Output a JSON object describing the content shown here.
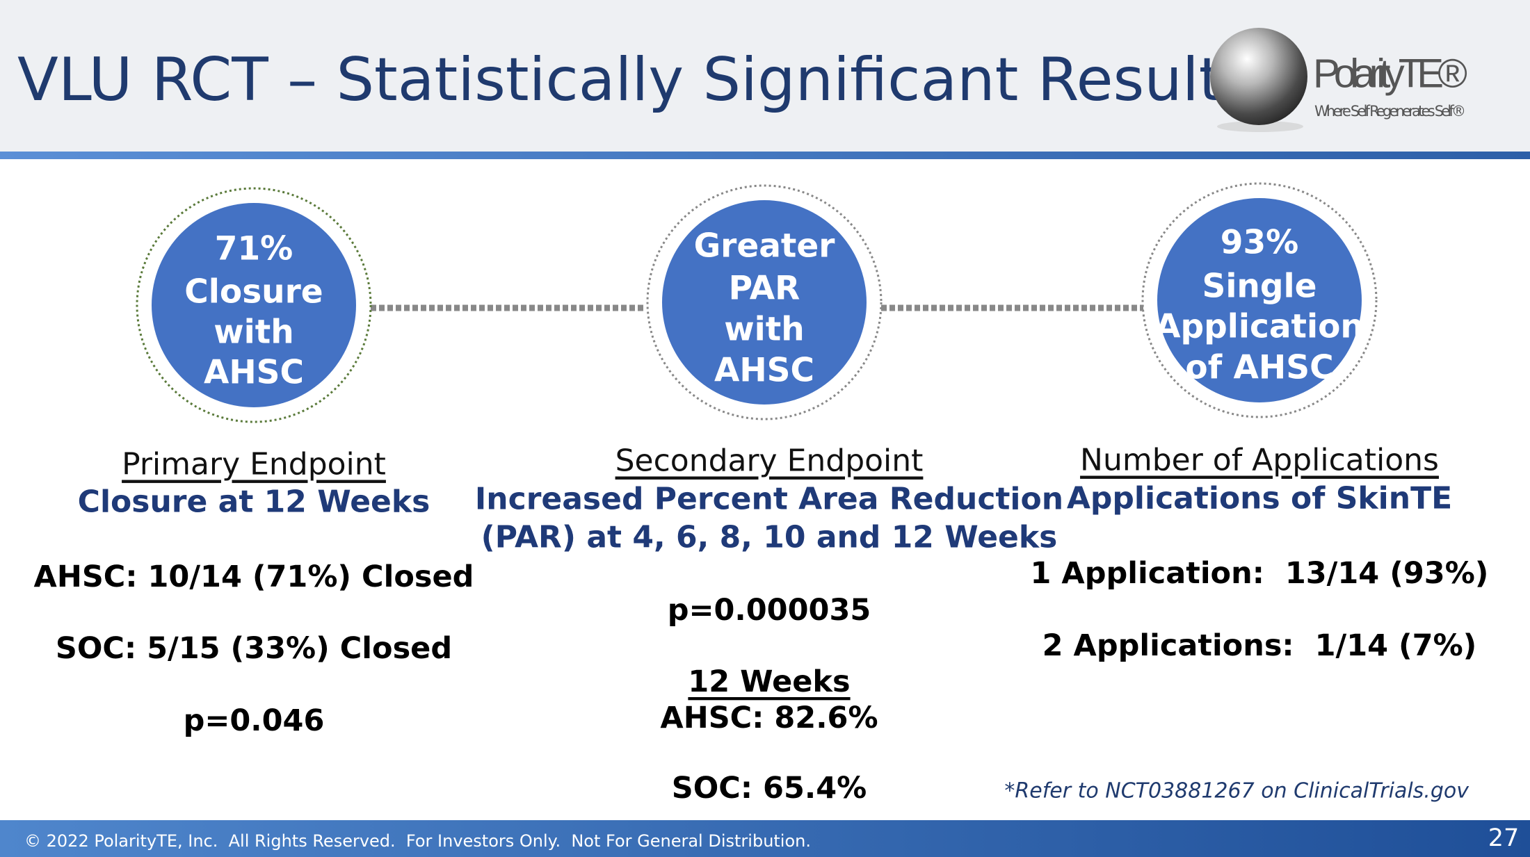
{
  "header": {
    "title": "VLU RCT – Statistically Significant Results"
  },
  "logo": {
    "name": "PolarityTE®",
    "tagline": "Where Self Regenerates Self®"
  },
  "columns": [
    {
      "circle": [
        "71%",
        "Closure",
        "with",
        "AHSC"
      ],
      "heading": "Primary Endpoint",
      "subheading": [
        "Closure at 12 Weeks"
      ],
      "lines": [
        "AHSC: 10/14 (71%) Closed",
        "SOC: 5/15 (33%) Closed",
        "p=0.046"
      ]
    },
    {
      "circle": [
        "Greater",
        "PAR",
        "with",
        "AHSC"
      ],
      "heading": "Secondary Endpoint",
      "subheading": [
        "Increased Percent Area Reduction",
        "(PAR) at 4, 6, 8, 10 and 12 Weeks"
      ],
      "lines": [
        "p=0.000035",
        "12 Weeks",
        "AHSC: 82.6%",
        "SOC: 65.4%"
      ]
    },
    {
      "circle": [
        "93%",
        "Single",
        "Application",
        "of AHSC"
      ],
      "heading": "Number of Applications",
      "subheading": [
        "Applications of SkinTE"
      ],
      "lines": [
        "1 Application:  13/14 (93%)",
        "2 Applications:  1/14 (7%)"
      ]
    }
  ],
  "footnote": "*Refer to NCT03881267 on ClinicalTrials.gov",
  "footer": {
    "copyright": "© 2022 PolarityTE, Inc.  All Rights Reserved.  For Investors Only.  Not For General Distribution.",
    "page_number": "27"
  }
}
